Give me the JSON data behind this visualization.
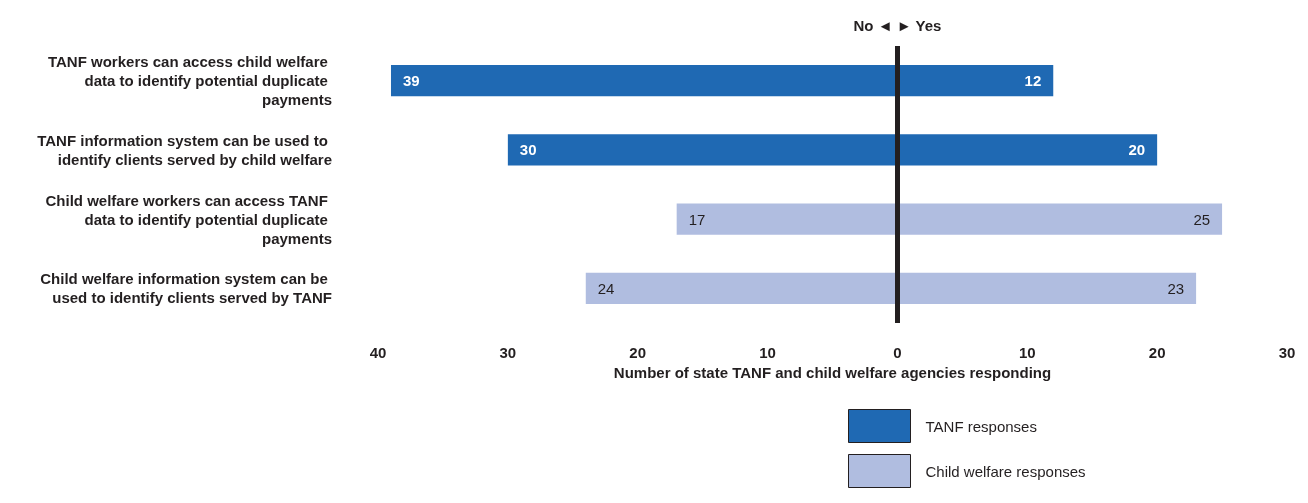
{
  "chart_data": {
    "type": "bar",
    "orientation": "horizontal",
    "categories": [
      "TANF workers can access child welfare data to identify potential duplicate payments",
      "TANF information system can be used to identify clients served by child welfare",
      "Child welfare workers can access TANF data to identify potential duplicate payments",
      "Child welfare information system can be used to identify clients served by TANF"
    ],
    "series": [
      {
        "name": "TANF responses",
        "color": "#1f69b3",
        "values": [
          39,
          30,
          null,
          null
        ],
        "base": [
          -39,
          -30,
          null,
          null
        ],
        "value_labels": [
          "39",
          "30",
          null,
          null
        ]
      },
      {
        "color": "#1f69b3",
        "values": [
          12,
          20,
          null,
          null
        ],
        "base": [
          0,
          0,
          null,
          null
        ],
        "value_labels": [
          "12",
          "20",
          null,
          null
        ]
      },
      {
        "name": "Child welfare responses",
        "color": "#b0bde0",
        "values": [
          null,
          null,
          17,
          24
        ],
        "base": [
          null,
          null,
          -17,
          -24
        ],
        "value_labels": [
          null,
          null,
          "17",
          "24"
        ]
      },
      {
        "color": "#b0bde0",
        "values": [
          null,
          null,
          25,
          23
        ],
        "base": [
          null,
          null,
          0,
          0
        ],
        "value_labels": [
          null,
          null,
          "25",
          "23"
        ]
      }
    ],
    "xlim": [
      -40,
      30
    ],
    "xticks": [
      {
        "value": -40,
        "label": "40"
      },
      {
        "value": -30,
        "label": "30"
      },
      {
        "value": -20,
        "label": "20"
      },
      {
        "value": -10,
        "label": "10"
      },
      0,
      10,
      20,
      30
    ],
    "xlabel": "Number of state TANF and child welfare agencies responding",
    "ref_lines": [
      {
        "axis": "x",
        "value": 0,
        "color": "#231f20"
      }
    ],
    "annotations": [
      "No ◄ ► Yes"
    ],
    "legend": "bottom right",
    "grid": false
  }
}
